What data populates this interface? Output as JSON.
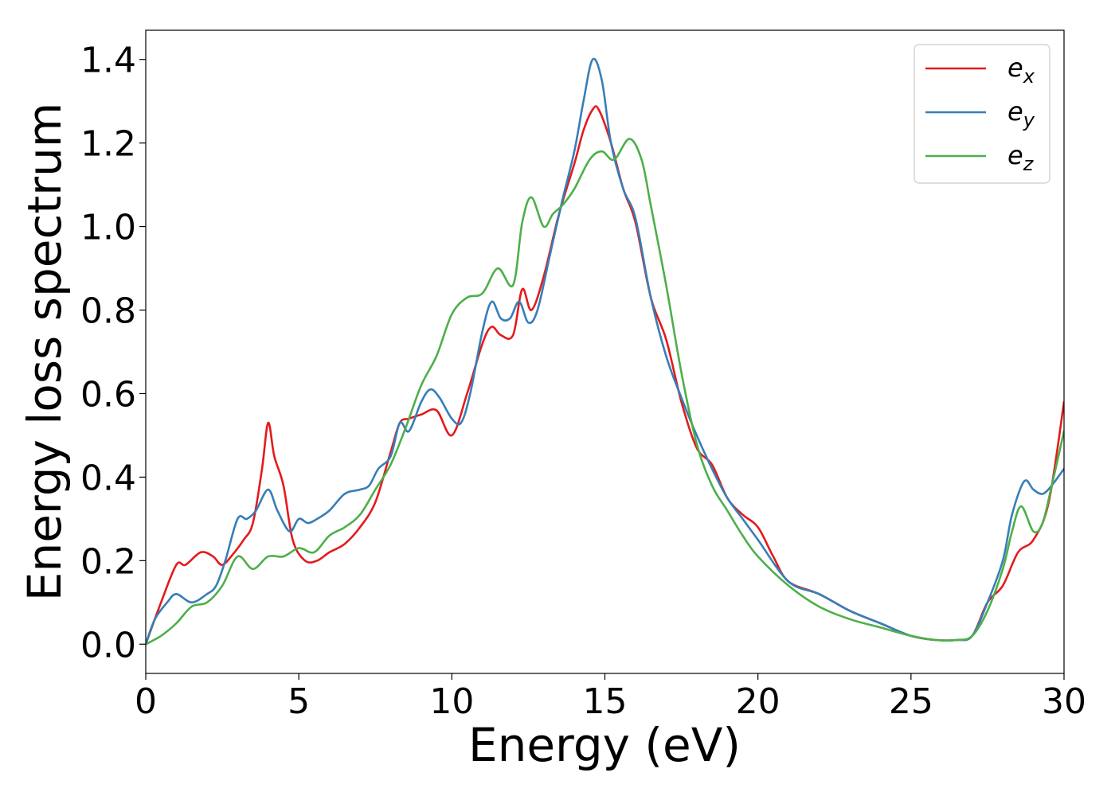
{
  "chart_data": {
    "type": "line",
    "title": "",
    "xlabel": "Energy (eV)",
    "ylabel": "Energy loss spectrum",
    "xlim": [
      0,
      30
    ],
    "ylim": [
      -0.07,
      1.47
    ],
    "xticks": [
      0,
      5,
      10,
      15,
      20,
      25,
      30
    ],
    "xtick_labels": [
      "0",
      "5",
      "10",
      "15",
      "20",
      "25",
      "30"
    ],
    "yticks": [
      0.0,
      0.2,
      0.4,
      0.6,
      0.8,
      1.0,
      1.2,
      1.4
    ],
    "ytick_labels": [
      "0.0",
      "0.2",
      "0.4",
      "0.6",
      "0.8",
      "1.0",
      "1.2",
      "1.4"
    ],
    "grid": false,
    "legend_position": "top-right",
    "series": [
      {
        "name": "e_x",
        "label_base": "e",
        "label_sub": "x",
        "color": "#e41a1c",
        "x": [
          0,
          0.5,
          1.0,
          1.3,
          1.8,
          2.2,
          2.5,
          2.9,
          3.2,
          3.5,
          3.8,
          4.0,
          4.2,
          4.5,
          4.8,
          5.2,
          5.6,
          6.0,
          6.5,
          7.0,
          7.5,
          8.0,
          8.3,
          8.6,
          9.0,
          9.5,
          10.0,
          10.5,
          11.0,
          11.3,
          11.6,
          12.0,
          12.3,
          12.6,
          13.0,
          13.5,
          14.0,
          14.3,
          14.6,
          14.8,
          15.2,
          15.6,
          16.0,
          16.5,
          17.0,
          17.5,
          18.0,
          18.5,
          19.0,
          19.5,
          20.0,
          20.5,
          21.0,
          22.0,
          23.0,
          24.0,
          25.0,
          25.8,
          26.5,
          27.0,
          27.5,
          28.0,
          28.5,
          29.0,
          29.5,
          30.0
        ],
        "y": [
          0.0,
          0.1,
          0.19,
          0.19,
          0.22,
          0.21,
          0.19,
          0.22,
          0.25,
          0.29,
          0.42,
          0.53,
          0.45,
          0.38,
          0.25,
          0.2,
          0.2,
          0.22,
          0.24,
          0.28,
          0.34,
          0.46,
          0.53,
          0.54,
          0.55,
          0.56,
          0.5,
          0.6,
          0.72,
          0.76,
          0.74,
          0.74,
          0.85,
          0.8,
          0.88,
          1.03,
          1.15,
          1.23,
          1.28,
          1.28,
          1.2,
          1.09,
          1.01,
          0.83,
          0.73,
          0.58,
          0.47,
          0.43,
          0.35,
          0.31,
          0.28,
          0.21,
          0.15,
          0.12,
          0.08,
          0.05,
          0.02,
          0.01,
          0.01,
          0.02,
          0.1,
          0.14,
          0.22,
          0.25,
          0.34,
          0.58
        ]
      },
      {
        "name": "e_y",
        "label_base": "e",
        "label_sub": "y",
        "color": "#377eb8",
        "x": [
          0,
          0.3,
          0.7,
          1.0,
          1.5,
          2.0,
          2.3,
          2.6,
          3.0,
          3.3,
          3.6,
          4.0,
          4.3,
          4.7,
          5.0,
          5.3,
          5.6,
          6.0,
          6.5,
          7.0,
          7.3,
          7.6,
          8.0,
          8.3,
          8.6,
          9.0,
          9.3,
          9.6,
          10.0,
          10.3,
          10.6,
          11.0,
          11.3,
          11.6,
          11.9,
          12.2,
          12.5,
          12.8,
          13.2,
          13.6,
          14.0,
          14.3,
          14.6,
          14.9,
          15.2,
          15.6,
          16.0,
          16.5,
          17.0,
          17.5,
          18.0,
          18.5,
          19.0,
          19.5,
          20.0,
          21.0,
          22.0,
          23.0,
          24.0,
          25.0,
          25.8,
          26.5,
          27.0,
          27.5,
          28.0,
          28.3,
          28.7,
          29.0,
          29.3,
          29.6,
          30.0
        ],
        "y": [
          0.0,
          0.06,
          0.1,
          0.12,
          0.1,
          0.12,
          0.14,
          0.2,
          0.3,
          0.3,
          0.32,
          0.37,
          0.32,
          0.27,
          0.3,
          0.29,
          0.3,
          0.32,
          0.36,
          0.37,
          0.38,
          0.42,
          0.45,
          0.53,
          0.51,
          0.58,
          0.61,
          0.59,
          0.54,
          0.53,
          0.6,
          0.75,
          0.82,
          0.78,
          0.78,
          0.82,
          0.77,
          0.8,
          0.93,
          1.06,
          1.18,
          1.3,
          1.4,
          1.35,
          1.2,
          1.09,
          1.02,
          0.83,
          0.69,
          0.59,
          0.5,
          0.42,
          0.35,
          0.3,
          0.25,
          0.15,
          0.12,
          0.08,
          0.05,
          0.02,
          0.01,
          0.01,
          0.02,
          0.1,
          0.2,
          0.31,
          0.39,
          0.37,
          0.36,
          0.38,
          0.42
        ]
      },
      {
        "name": "e_z",
        "label_base": "e",
        "label_sub": "z",
        "color": "#4daf4a",
        "x": [
          0,
          0.5,
          1.0,
          1.5,
          2.0,
          2.5,
          3.0,
          3.5,
          4.0,
          4.5,
          5.0,
          5.5,
          6.0,
          6.5,
          7.0,
          7.5,
          8.0,
          8.5,
          9.0,
          9.5,
          10.0,
          10.5,
          11.0,
          11.5,
          12.0,
          12.3,
          12.6,
          13.0,
          13.3,
          13.6,
          14.0,
          14.5,
          14.9,
          15.3,
          15.8,
          16.2,
          16.5,
          17.0,
          17.5,
          18.0,
          18.5,
          19.0,
          19.5,
          20.0,
          21.0,
          22.0,
          23.0,
          24.0,
          25.0,
          25.8,
          26.5,
          27.0,
          27.5,
          28.0,
          28.3,
          28.6,
          29.0,
          29.3,
          29.6,
          30.0
        ],
        "y": [
          0.0,
          0.02,
          0.05,
          0.09,
          0.1,
          0.14,
          0.21,
          0.18,
          0.21,
          0.21,
          0.23,
          0.22,
          0.26,
          0.28,
          0.31,
          0.37,
          0.43,
          0.52,
          0.62,
          0.69,
          0.79,
          0.83,
          0.84,
          0.9,
          0.86,
          1.01,
          1.07,
          1.0,
          1.03,
          1.05,
          1.09,
          1.16,
          1.18,
          1.16,
          1.21,
          1.16,
          1.05,
          0.86,
          0.65,
          0.48,
          0.38,
          0.32,
          0.26,
          0.21,
          0.14,
          0.09,
          0.06,
          0.04,
          0.02,
          0.01,
          0.01,
          0.02,
          0.08,
          0.18,
          0.27,
          0.33,
          0.27,
          0.29,
          0.38,
          0.51
        ]
      }
    ]
  }
}
